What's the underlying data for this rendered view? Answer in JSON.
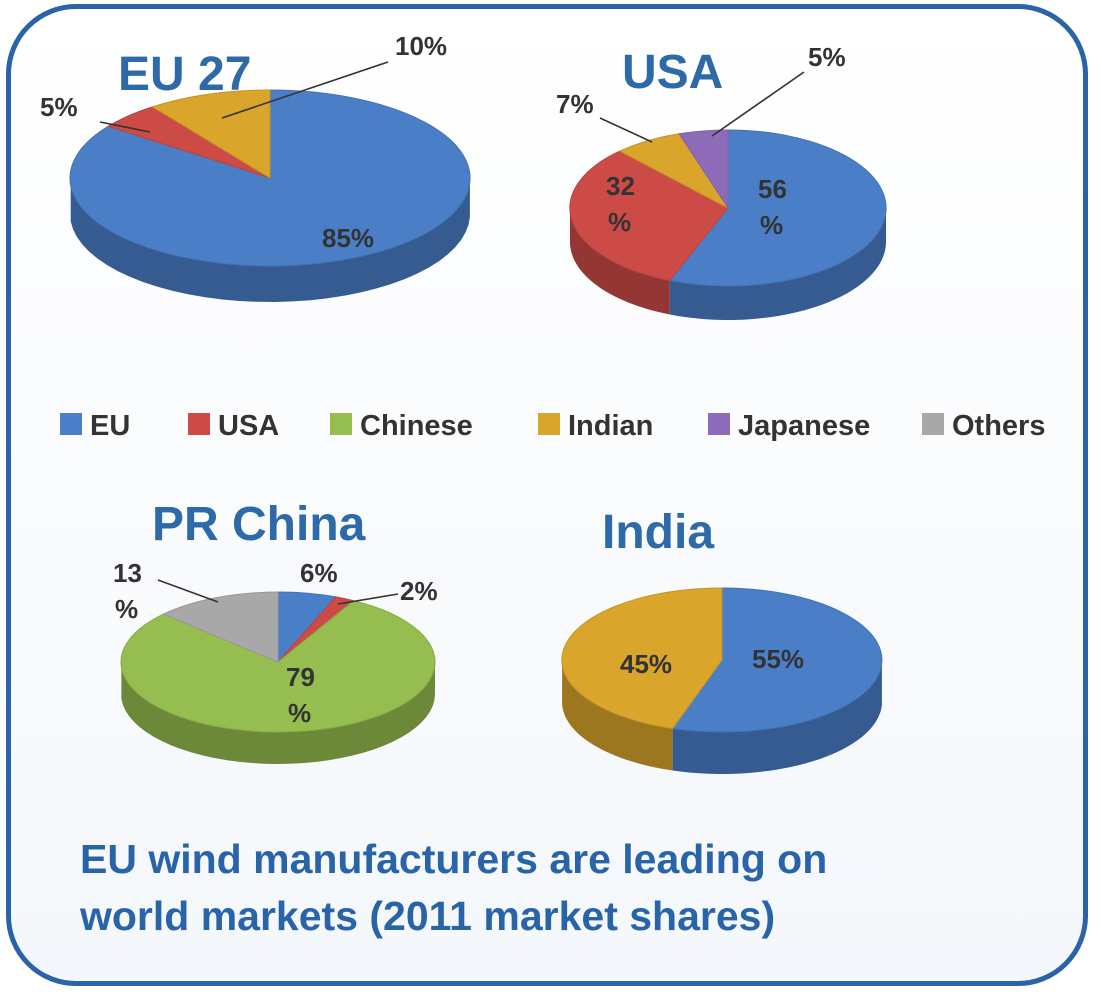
{
  "colors": {
    "EU": "#4a7fc8",
    "USA": "#cd4b47",
    "Chinese": "#96bd4f",
    "Indian": "#d9a52b",
    "Japanese": "#8e6bb8",
    "Others": "#a8a8a8",
    "title": "#2e6aa8",
    "frame": "#2a63a7"
  },
  "legend": [
    "EU",
    "USA",
    "Chinese",
    "Indian",
    "Japanese",
    "Others"
  ],
  "chart_data": [
    {
      "type": "pie",
      "title": "EU 27",
      "slices": [
        {
          "category": "EU",
          "value": 85,
          "label": "85%"
        },
        {
          "category": "USA",
          "value": 5,
          "label": "5%"
        },
        {
          "category": "Indian",
          "value": 10,
          "label": "10%"
        }
      ]
    },
    {
      "type": "pie",
      "title": "USA",
      "slices": [
        {
          "category": "EU",
          "value": 56,
          "label": "56\n%"
        },
        {
          "category": "USA",
          "value": 32,
          "label": "32\n%"
        },
        {
          "category": "Indian",
          "value": 7,
          "label": "7%"
        },
        {
          "category": "Japanese",
          "value": 5,
          "label": "5%"
        }
      ]
    },
    {
      "type": "pie",
      "title": "PR China",
      "slices": [
        {
          "category": "EU",
          "value": 6,
          "label": "6%"
        },
        {
          "category": "USA",
          "value": 2,
          "label": "2%"
        },
        {
          "category": "Chinese",
          "value": 79,
          "label": "79\n%"
        },
        {
          "category": "Others",
          "value": 13,
          "label": "13\n%"
        }
      ]
    },
    {
      "type": "pie",
      "title": "India",
      "slices": [
        {
          "category": "EU",
          "value": 55,
          "label": "55%"
        },
        {
          "category": "Indian",
          "value": 45,
          "label": "45%"
        }
      ]
    }
  ],
  "caption": {
    "line1": "EU wind manufacturers are leading on",
    "line2": "world markets (2011 market shares)"
  }
}
